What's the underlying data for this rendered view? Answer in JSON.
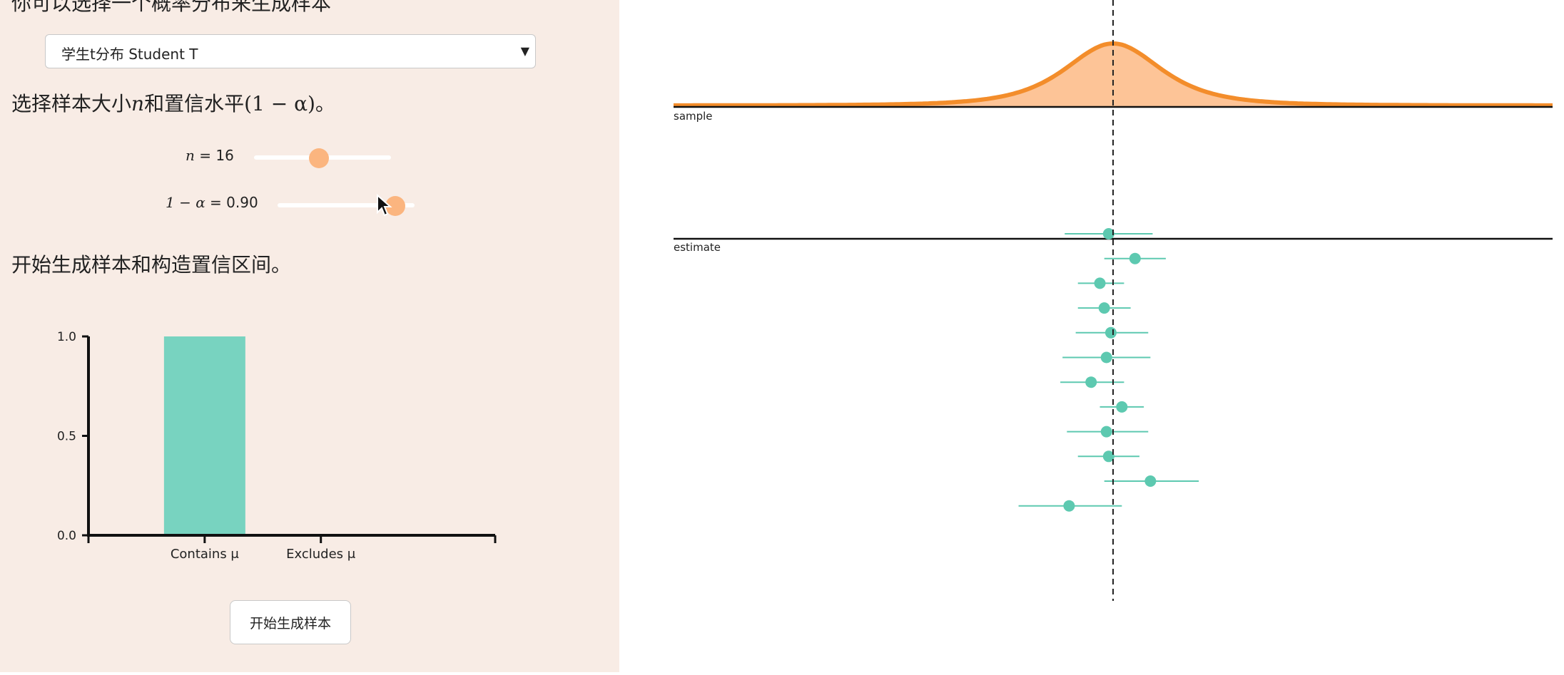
{
  "left": {
    "intro_text": "你可以选择一个概率分布来生成样本",
    "distribution_select": {
      "value": "学生t分布 Student T"
    },
    "sample_prompt": {
      "text": "选择样本大小",
      "var": "n",
      "mid": "和置信水平",
      "formula": "(1 − α)",
      "end": "。"
    },
    "n_slider": {
      "label_var": "n",
      "label_rest": " = 16",
      "value": 16,
      "min": 2,
      "max": 50
    },
    "conf_slider": {
      "label_var": "1 − α",
      "label_rest": " = 0.90",
      "value": 0.9,
      "min": 0.5,
      "max": 0.99
    },
    "start_prompt": "开始生成样本和构造置信区间。",
    "start_button_label": "开始生成样本"
  },
  "chart_data": [
    {
      "type": "bar",
      "categories": [
        "Contains μ",
        "Excludes μ"
      ],
      "values": [
        1.0,
        0.0
      ],
      "ylim": [
        0,
        1
      ],
      "yticks": [
        "0.0",
        "0.5",
        "1.0"
      ],
      "grid": false
    },
    {
      "type": "area",
      "axis_label": "sample",
      "distribution": "Student T",
      "x_domain": [
        -10,
        10
      ],
      "mean": 0
    },
    {
      "type": "scatter",
      "axis_label": "estimate",
      "x_domain": [
        -10,
        10
      ],
      "mean": 0,
      "intervals": [
        {
          "est": -0.1,
          "lo": -1.1,
          "hi": 0.9
        },
        {
          "est": 0.5,
          "lo": -0.2,
          "hi": 1.2
        },
        {
          "est": -0.3,
          "lo": -0.8,
          "hi": 0.25
        },
        {
          "est": -0.2,
          "lo": -0.8,
          "hi": 0.4
        },
        {
          "est": -0.05,
          "lo": -0.85,
          "hi": 0.8
        },
        {
          "est": -0.15,
          "lo": -1.15,
          "hi": 0.85
        },
        {
          "est": -0.5,
          "lo": -1.2,
          "hi": 0.25
        },
        {
          "est": 0.2,
          "lo": -0.3,
          "hi": 0.7
        },
        {
          "est": -0.15,
          "lo": -1.05,
          "hi": 0.8
        },
        {
          "est": -0.1,
          "lo": -0.8,
          "hi": 0.6
        },
        {
          "est": 0.85,
          "lo": -0.2,
          "hi": 1.95
        },
        {
          "est": -1.0,
          "lo": -2.15,
          "hi": 0.2
        }
      ]
    }
  ],
  "colors": {
    "left_bg": "#f8ece5",
    "accent_orange": "#f38d2b",
    "orange_fill": "#fdc497",
    "teal": "#5dc9b0",
    "teal_bar": "#78d3c0",
    "thumb": "#fbb57f"
  }
}
